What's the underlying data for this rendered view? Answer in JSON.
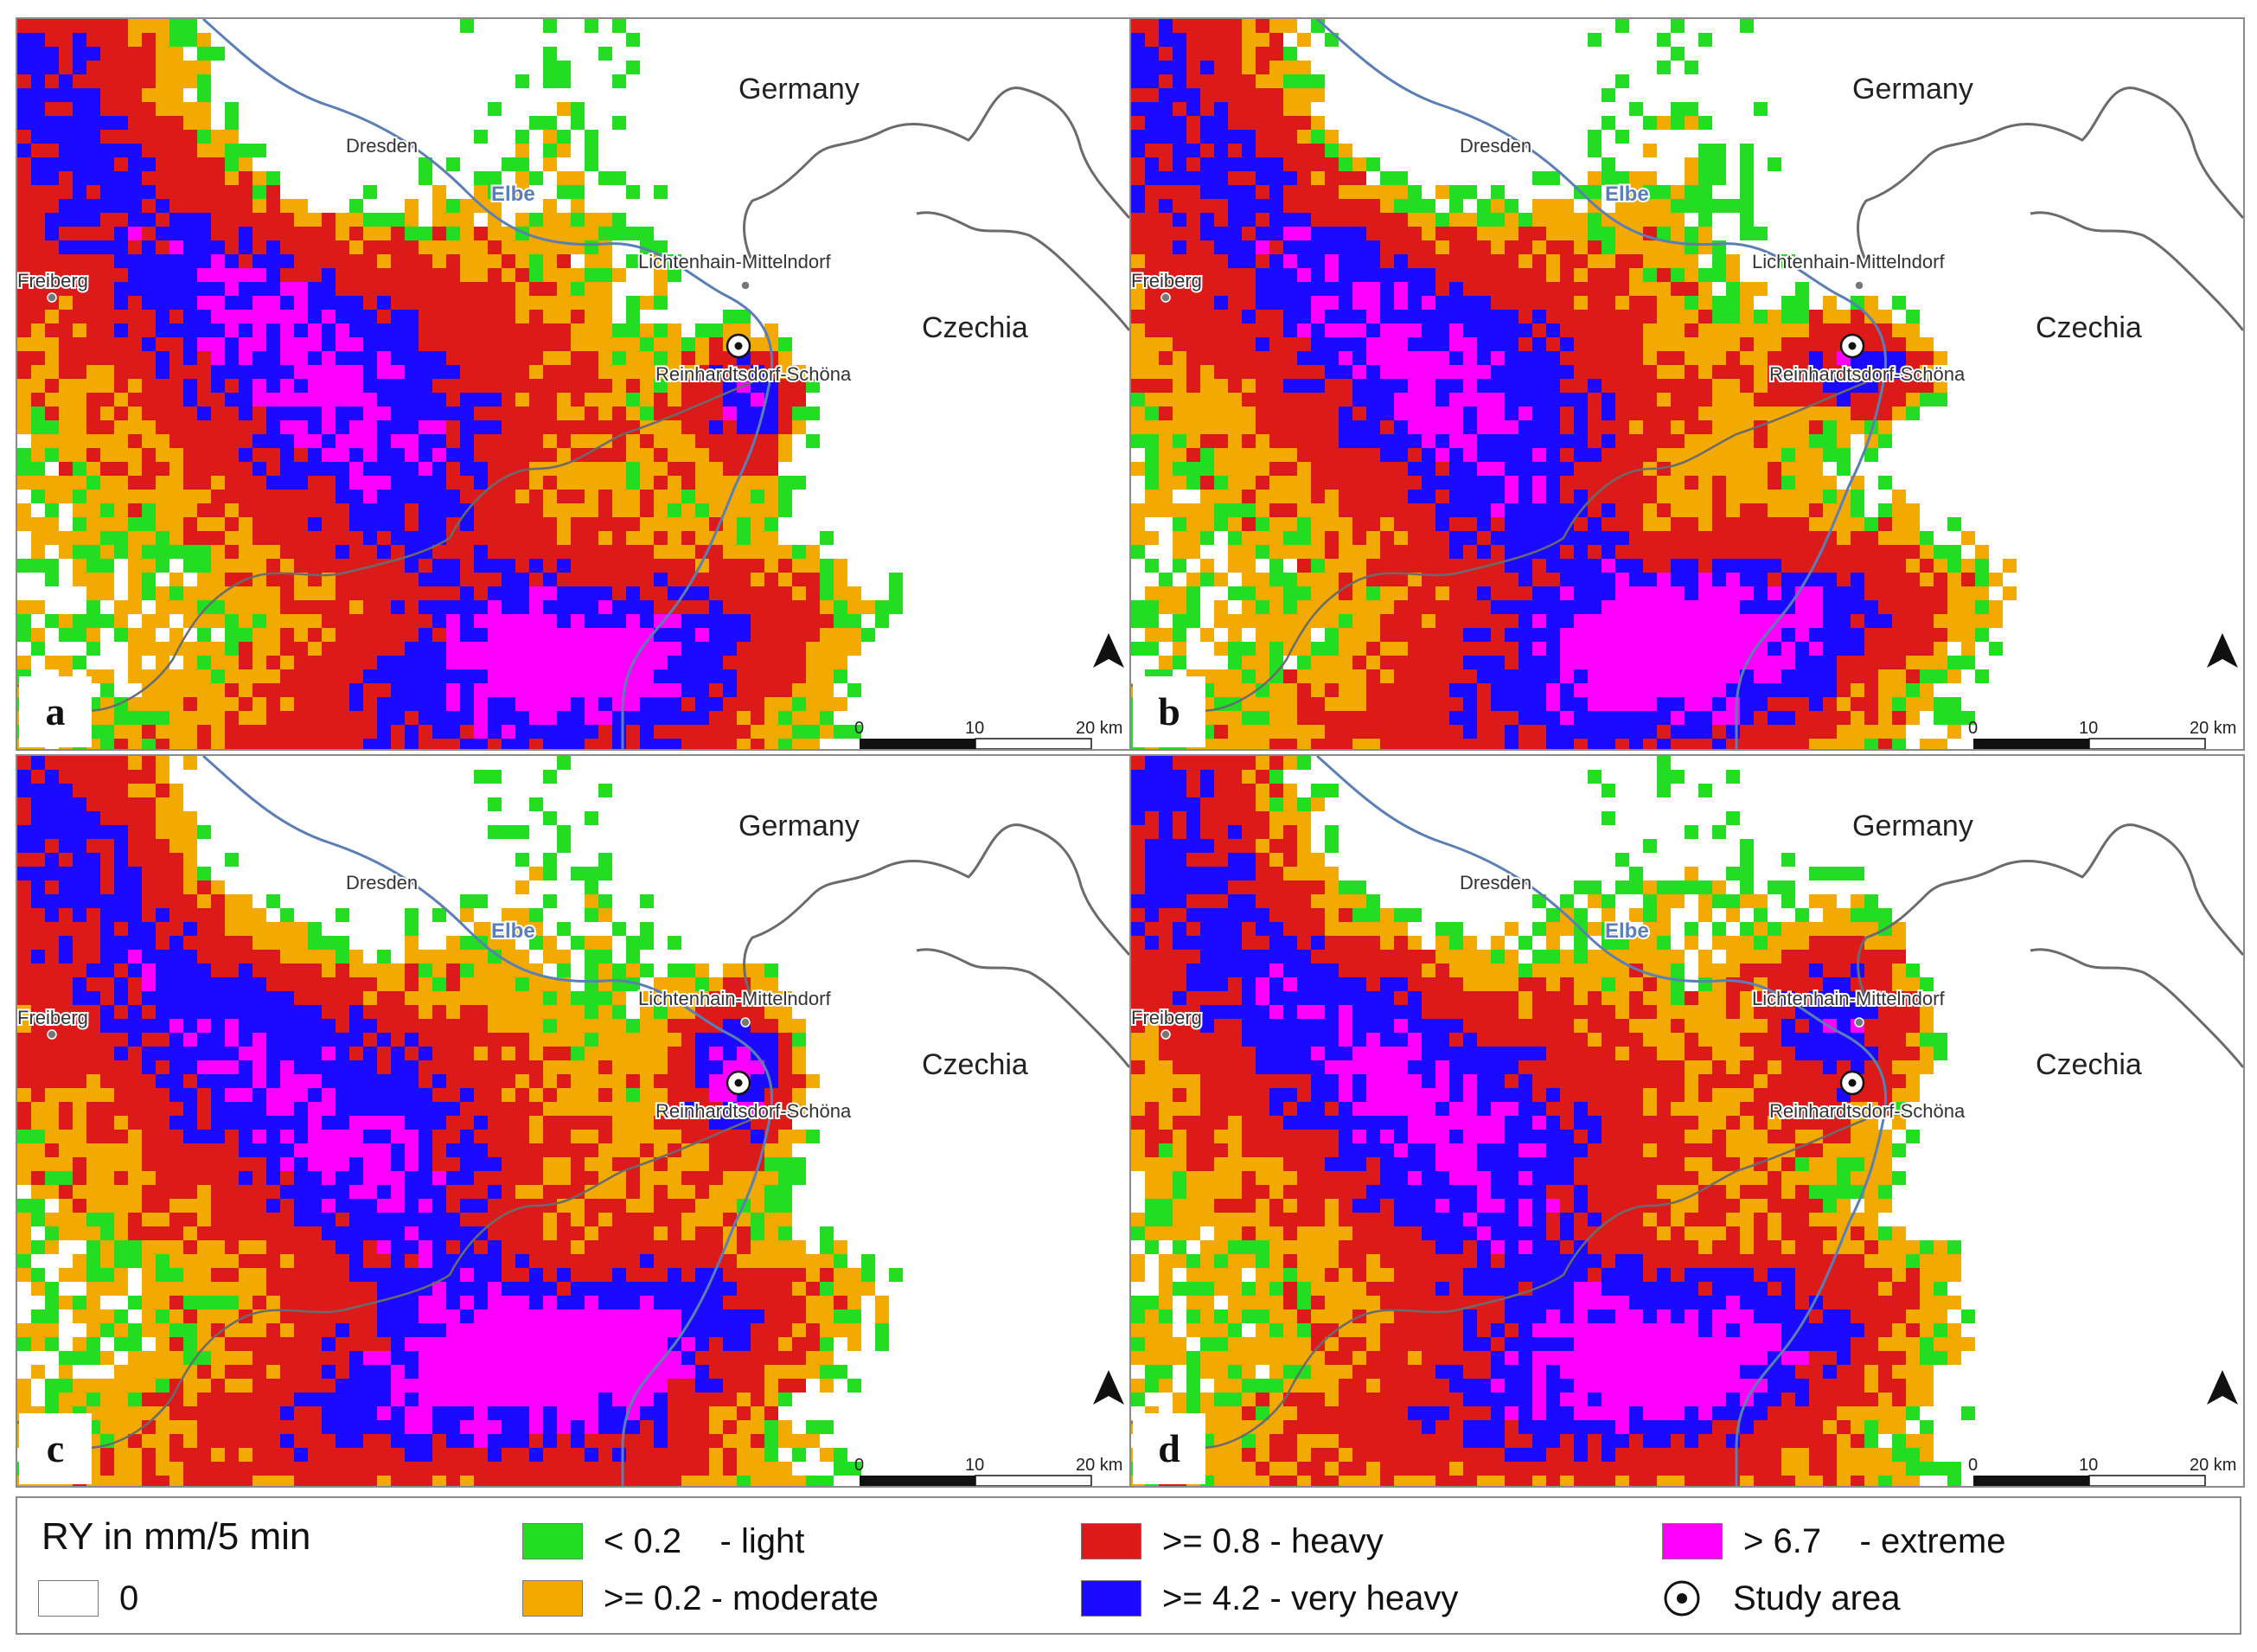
{
  "figure": {
    "panels": [
      {
        "letter": "a"
      },
      {
        "letter": "b"
      },
      {
        "letter": "c"
      },
      {
        "letter": "d"
      }
    ],
    "labels": {
      "germany": "Germany",
      "czechia": "Czechia",
      "dresden": "Dresden",
      "elbe": "Elbe",
      "freiberg": "Freiberg",
      "lichtenhain": "Lichtenhain-Mittelndorf",
      "reinhardtsdorf": "Reinhardtsdorf-Schöna"
    },
    "scale_bar": {
      "tick_0": "0",
      "tick_10": "10",
      "tick_20": "20 km"
    },
    "north_arrow_icon": "north-arrow-icon",
    "legend": {
      "title": "RY in mm/5 min",
      "classes": [
        {
          "label": "0",
          "color": "#ffffff"
        },
        {
          "label": "< 0.2    - light",
          "color": "#22dd22"
        },
        {
          "label": ">= 0.2 - moderate",
          "color": "#f2a900"
        },
        {
          "label": ">= 0.8 - heavy",
          "color": "#dd1a1a"
        },
        {
          "label": ">= 4.2 - very heavy",
          "color": "#1a0aff"
        },
        {
          "label": "> 6.7    - extreme",
          "color": "#ff00ff"
        }
      ],
      "study_area": "Study area"
    },
    "colors": {
      "border": "#6b6b6b",
      "river": "#5b7fb5",
      "national_border": "#333333"
    }
  }
}
